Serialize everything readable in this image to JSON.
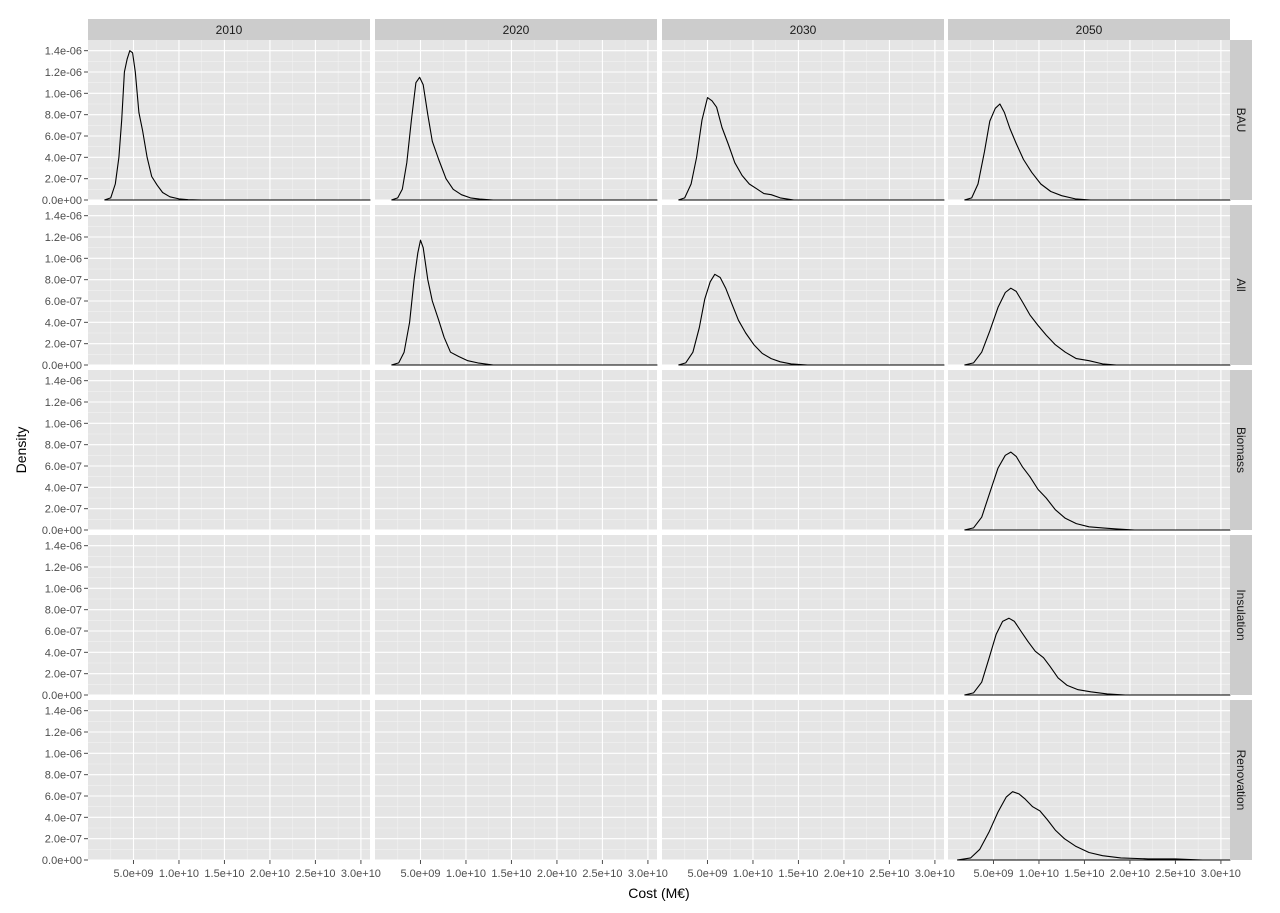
{
  "chart_data": {
    "type": "density-facet-grid",
    "xlabel": "Cost (M€)",
    "ylabel": "Density",
    "xlim": [
      0,
      31000000000
    ],
    "ylim": [
      0,
      1.5e-06
    ],
    "x_ticks": [
      5000000000,
      10000000000,
      15000000000,
      20000000000,
      25000000000,
      30000000000
    ],
    "x_tick_labels": [
      "5.0e+09",
      "1.0e+10",
      "1.5e+10",
      "2.0e+10",
      "2.5e+10",
      "3.0e+10"
    ],
    "y_ticks": [
      0,
      2e-07,
      4e-07,
      6e-07,
      8e-07,
      1e-06,
      1.2e-06,
      1.4e-06
    ],
    "y_tick_labels": [
      "0.0e+00",
      "2.0e-07",
      "4.0e-07",
      "6.0e-07",
      "8.0e-07",
      "1.0e-06",
      "1.2e-06",
      "1.4e-06"
    ],
    "grid": true,
    "columns": [
      "2010",
      "2020",
      "2030",
      "2050"
    ],
    "rows": [
      "BAU",
      "All",
      "Biomass",
      "Insulation",
      "Renovation"
    ],
    "panels": [
      {
        "row": "BAU",
        "col": "2010",
        "x": [
          1800000000,
          2500000000,
          3000000000,
          3400000000,
          3700000000,
          4000000000,
          4300000000,
          4600000000,
          4900000000,
          5200000000,
          5600000000,
          6000000000,
          6500000000,
          7000000000,
          7600000000,
          8200000000,
          9000000000,
          10000000000,
          11000000000,
          12500000000,
          31000000000
        ],
        "y": [
          0,
          2e-08,
          1.5e-07,
          4e-07,
          7.5e-07,
          1.2e-06,
          1.32e-06,
          1.4e-06,
          1.38e-06,
          1.2e-06,
          8.2e-07,
          6.5e-07,
          4e-07,
          2.2e-07,
          1.4e-07,
          7e-08,
          3e-08,
          1e-08,
          3e-09,
          0,
          0
        ]
      },
      {
        "row": "BAU",
        "col": "2020",
        "x": [
          1800000000,
          2500000000,
          3000000000,
          3500000000,
          4000000000,
          4500000000,
          4900000000,
          5300000000,
          5800000000,
          6300000000,
          7000000000,
          7800000000,
          8600000000,
          9500000000,
          10500000000,
          11500000000,
          13000000000,
          31000000000
        ],
        "y": [
          0,
          2e-08,
          1e-07,
          3.5e-07,
          7.5e-07,
          1.1e-06,
          1.15e-06,
          1.08e-06,
          8e-07,
          5.5e-07,
          3.8e-07,
          2e-07,
          1e-07,
          5e-08,
          2e-08,
          8e-09,
          0,
          0
        ]
      },
      {
        "row": "BAU",
        "col": "2030",
        "x": [
          1800000000,
          2500000000,
          3200000000,
          3800000000,
          4400000000,
          5000000000,
          5500000000,
          6000000000,
          6600000000,
          7300000000,
          8000000000,
          8800000000,
          9600000000,
          10500000000,
          11200000000,
          12000000000,
          13000000000,
          14500000000,
          31000000000
        ],
        "y": [
          0,
          2e-08,
          1.5e-07,
          4e-07,
          7.5e-07,
          9.6e-07,
          9.3e-07,
          8.7e-07,
          6.8e-07,
          5.2e-07,
          3.5e-07,
          2.3e-07,
          1.5e-07,
          1e-07,
          6e-08,
          5e-08,
          2e-08,
          0,
          0
        ]
      },
      {
        "row": "BAU",
        "col": "2050",
        "x": [
          1800000000,
          2600000000,
          3300000000,
          4000000000,
          4600000000,
          5200000000,
          5700000000,
          6200000000,
          6800000000,
          7500000000,
          8300000000,
          9200000000,
          10200000000,
          11300000000,
          12500000000,
          14000000000,
          15700000000,
          31000000000
        ],
        "y": [
          0,
          2e-08,
          1.5e-07,
          4.5e-07,
          7.4e-07,
          8.6e-07,
          9e-07,
          8.2e-07,
          6.7e-07,
          5.3e-07,
          3.8e-07,
          2.6e-07,
          1.5e-07,
          8e-08,
          4e-08,
          1e-08,
          0,
          0
        ]
      },
      {
        "row": "All",
        "col": "2020",
        "x": [
          1800000000,
          2600000000,
          3200000000,
          3800000000,
          4300000000,
          4700000000,
          5000000000,
          5300000000,
          5800000000,
          6300000000,
          7000000000,
          7600000000,
          8300000000,
          9200000000,
          10200000000,
          11300000000,
          13000000000,
          31000000000
        ],
        "y": [
          0,
          2e-08,
          1.2e-07,
          4e-07,
          8e-07,
          1.05e-06,
          1.17e-06,
          1.1e-06,
          8e-07,
          6e-07,
          4.2e-07,
          2.6e-07,
          1.2e-07,
          8e-08,
          4e-08,
          2e-08,
          0,
          0
        ]
      },
      {
        "row": "All",
        "col": "2030",
        "x": [
          1800000000,
          2600000000,
          3400000000,
          4100000000,
          4700000000,
          5300000000,
          5800000000,
          6400000000,
          7000000000,
          7700000000,
          8400000000,
          9200000000,
          10100000000,
          11000000000,
          12000000000,
          13000000000,
          14200000000,
          16000000000,
          31000000000
        ],
        "y": [
          0,
          2e-08,
          1.2e-07,
          3.5e-07,
          6.2e-07,
          7.8e-07,
          8.5e-07,
          8.2e-07,
          7.2e-07,
          5.7e-07,
          4.2e-07,
          3e-07,
          1.9e-07,
          1.1e-07,
          6e-08,
          3e-08,
          1e-08,
          0,
          0
        ]
      },
      {
        "row": "All",
        "col": "2050",
        "x": [
          1800000000,
          2800000000,
          3700000000,
          4600000000,
          5500000000,
          6300000000,
          6900000000,
          7500000000,
          8200000000,
          9000000000,
          9900000000,
          10800000000,
          11800000000,
          12900000000,
          14100000000,
          15500000000,
          17000000000,
          18500000000,
          31000000000
        ],
        "y": [
          0,
          2e-08,
          1.2e-07,
          3.2e-07,
          5.4e-07,
          6.8e-07,
          7.2e-07,
          6.9e-07,
          5.9e-07,
          4.7e-07,
          3.7e-07,
          2.8e-07,
          1.9e-07,
          1.2e-07,
          6e-08,
          4e-08,
          1e-08,
          0,
          0
        ]
      },
      {
        "row": "Biomass",
        "col": "2050",
        "x": [
          1800000000,
          2800000000,
          3700000000,
          4600000000,
          5500000000,
          6300000000,
          6900000000,
          7500000000,
          8200000000,
          9000000000,
          9900000000,
          10800000000,
          11800000000,
          12900000000,
          14100000000,
          15500000000,
          17000000000,
          18500000000,
          20500000000,
          31000000000
        ],
        "y": [
          0,
          2e-08,
          1.2e-07,
          3.5e-07,
          5.8e-07,
          7e-07,
          7.3e-07,
          6.9e-07,
          5.9e-07,
          5e-07,
          3.8e-07,
          3e-07,
          1.9e-07,
          1.1e-07,
          6e-08,
          3e-08,
          2e-08,
          1e-08,
          0,
          0
        ]
      },
      {
        "row": "Insulation",
        "col": "2050",
        "x": [
          1800000000,
          2800000000,
          3700000000,
          4500000000,
          5300000000,
          6000000000,
          6700000000,
          7300000000,
          8000000000,
          8800000000,
          9600000000,
          10500000000,
          11200000000,
          12100000000,
          13100000000,
          14300000000,
          15700000000,
          17500000000,
          19500000000,
          31000000000
        ],
        "y": [
          0,
          2e-08,
          1.2e-07,
          3.4e-07,
          5.7e-07,
          6.9e-07,
          7.2e-07,
          6.9e-07,
          6e-07,
          5e-07,
          4.1e-07,
          3.5e-07,
          2.7e-07,
          1.6e-07,
          9e-08,
          5e-08,
          3e-08,
          1e-08,
          0,
          0
        ]
      },
      {
        "row": "Renovation",
        "col": "2050",
        "x": [
          1000000000,
          2500000000,
          3500000000,
          4500000000,
          5500000000,
          6400000000,
          7100000000,
          7800000000,
          8500000000,
          9300000000,
          10100000000,
          10900000000,
          11800000000,
          12800000000,
          14000000000,
          15500000000,
          17000000000,
          19000000000,
          22000000000,
          25000000000,
          28000000000,
          31000000000
        ],
        "y": [
          0,
          2e-08,
          1e-07,
          2.6e-07,
          4.5e-07,
          5.9e-07,
          6.4e-07,
          6.2e-07,
          5.7e-07,
          5e-07,
          4.6e-07,
          3.8e-07,
          2.8e-07,
          2e-07,
          1.3e-07,
          7e-08,
          4e-08,
          2e-08,
          1e-08,
          1e-08,
          0,
          0
        ]
      }
    ]
  },
  "colors": {
    "panel_background": "#e5e5e5",
    "grid_major": "#ffffff",
    "grid_minor": "#f2f2f2",
    "strip_background": "#cccccc",
    "line": "#000000",
    "tick_text": "#4d4d4d"
  }
}
